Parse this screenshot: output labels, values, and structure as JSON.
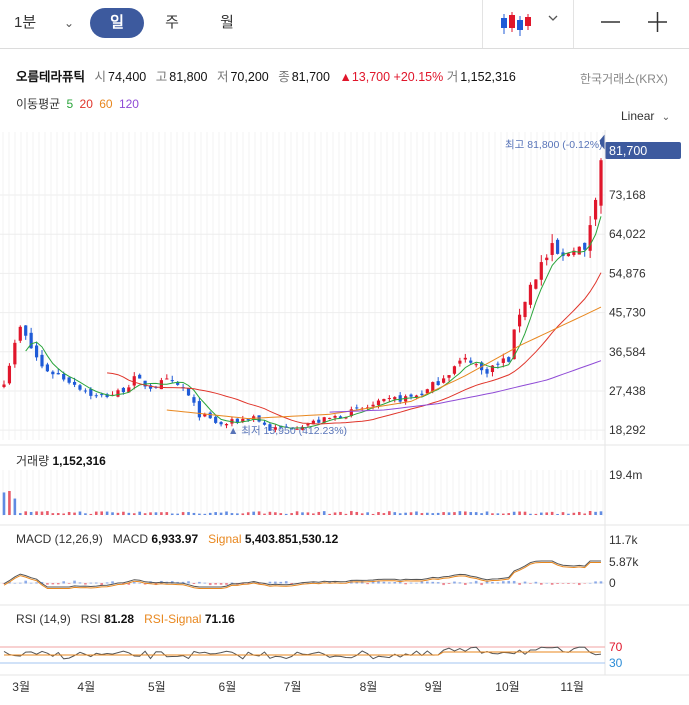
{
  "toolbar": {
    "interval": "1분",
    "tabs": [
      {
        "label": "일",
        "active": true
      },
      {
        "label": "주",
        "active": false
      },
      {
        "label": "월",
        "active": false
      }
    ],
    "chart_type_icon": "candlestick-icon",
    "minus_icon": "minus-icon",
    "plus_icon": "plus-icon"
  },
  "quote": {
    "name": "오름테라퓨틱",
    "open_label": "시",
    "open": "74,400",
    "high_label": "고",
    "high": "81,800",
    "low_label": "저",
    "low": "70,200",
    "close_label": "종",
    "close": "81,700",
    "change": "13,700",
    "change_pct": "+20.15%",
    "volume_label": "거",
    "volume": "1,152,316",
    "exchange": "한국거래소(KRX)"
  },
  "moving_average": {
    "label": "이동평균",
    "periods": [
      {
        "label": "5",
        "color": "#2aa53b"
      },
      {
        "label": "20",
        "color": "#e0352b"
      },
      {
        "label": "60",
        "color": "#e8871e"
      },
      {
        "label": "120",
        "color": "#8f4bd6"
      }
    ]
  },
  "scale": {
    "label": "Linear"
  },
  "colors": {
    "up": "#e0162b",
    "down": "#1f5bd7",
    "accent": "#3d5a9e",
    "rsi_signal": "#e8871e",
    "macd": "#555555"
  },
  "chart_data": [
    {
      "type": "candlestick",
      "x_tick_labels": [
        "3월",
        "4월",
        "5월",
        "6월",
        "7월",
        "8월",
        "9월",
        "10월",
        "11월"
      ],
      "y_tick_labels": [
        "73,168",
        "64,022",
        "54,876",
        "45,730",
        "36,584",
        "27,438",
        "18,292"
      ],
      "ylim": [
        16000,
        86000
      ],
      "last_price_label": "81,700",
      "annotations": {
        "high": "최고 81,800 (-0.12%)",
        "low": "최저 15,950 (412.23%)"
      },
      "price_path": [
        [
          0,
          30000
        ],
        [
          3,
          42000
        ],
        [
          7,
          33000
        ],
        [
          12,
          30000
        ],
        [
          17,
          26000
        ],
        [
          21,
          27000
        ],
        [
          24,
          30000
        ],
        [
          27,
          28500
        ],
        [
          30,
          29500
        ],
        [
          33,
          28000
        ],
        [
          36,
          22000
        ],
        [
          40,
          19500
        ],
        [
          43,
          20500
        ],
        [
          46,
          21500
        ],
        [
          49,
          18500
        ],
        [
          53,
          19000
        ],
        [
          56,
          19800
        ],
        [
          60,
          21000
        ],
        [
          64,
          22500
        ],
        [
          68,
          24000
        ],
        [
          72,
          25500
        ],
        [
          75,
          26000
        ],
        [
          78,
          27500
        ],
        [
          81,
          31000
        ],
        [
          84,
          34000
        ],
        [
          86,
          35000
        ],
        [
          88,
          32000
        ],
        [
          90,
          33000
        ],
        [
          93,
          35000
        ],
        [
          95,
          46000
        ],
        [
          97,
          52000
        ],
        [
          99,
          57000
        ],
        [
          101,
          60000
        ],
        [
          103,
          58000
        ],
        [
          105,
          62000
        ],
        [
          107,
          59000
        ],
        [
          108.5,
          71000
        ],
        [
          110,
          81700
        ]
      ],
      "ma60_path": [
        [
          30,
          23000
        ],
        [
          45,
          21000
        ],
        [
          60,
          22000
        ],
        [
          75,
          25000
        ],
        [
          85,
          31000
        ],
        [
          95,
          38000
        ],
        [
          110,
          47000
        ]
      ],
      "ma120_path": [
        [
          60,
          22500
        ],
        [
          70,
          23000
        ],
        [
          80,
          24500
        ],
        [
          90,
          27000
        ],
        [
          100,
          30000
        ],
        [
          110,
          34500
        ]
      ]
    },
    {
      "type": "bar",
      "title": "거래량",
      "value": "1,152,316",
      "y_tick_labels": [
        "19.4m"
      ]
    },
    {
      "type": "line",
      "title": "MACD (12,26,9)",
      "macd_label": "MACD",
      "macd_value": "6,933.97",
      "signal_label": "Signal",
      "signal_value": "5,403.851,530.12",
      "y_tick_labels": [
        "11.7k",
        "5.87k",
        "0"
      ]
    },
    {
      "type": "line",
      "title": "RSI (14,9)",
      "rsi_label": "RSI",
      "rsi_value": "81.28",
      "signal_label": "RSI-Signal",
      "signal_value": "71.16",
      "y_tick_labels": [
        "70",
        "30"
      ]
    }
  ]
}
